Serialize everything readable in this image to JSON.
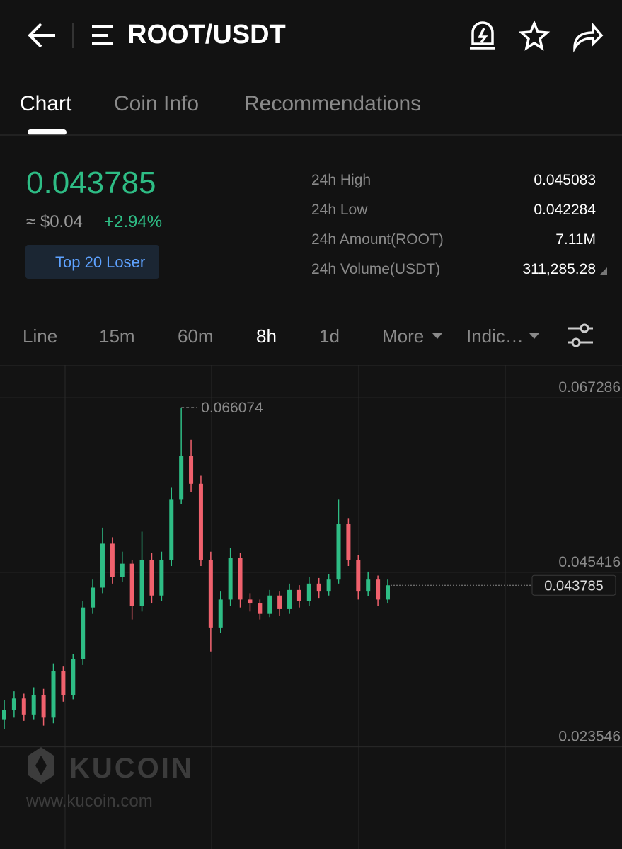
{
  "header": {
    "title": "ROOT/USDT"
  },
  "tabs": [
    "Chart",
    "Coin Info",
    "Recommendations"
  ],
  "ticker": {
    "price": "0.043785",
    "fiat": "≈ $0.04",
    "change": "+2.94%",
    "badge": "Top 20 Loser",
    "stats": [
      {
        "label": "24h High",
        "value": "0.045083"
      },
      {
        "label": "24h Low",
        "value": "0.042284"
      },
      {
        "label": "24h Amount(ROOT)",
        "value": "7.11M"
      },
      {
        "label": "24h Volume(USDT)",
        "value": "311,285.28"
      }
    ]
  },
  "intervals": [
    "Line",
    "15m",
    "60m",
    "8h",
    "1d",
    "More",
    "Indic…"
  ],
  "watermark": {
    "brand": "KUCOIN",
    "url": "www.kucoin.com"
  },
  "chart": {
    "type": "candlestick",
    "up_color": "#2ebd85",
    "down_color": "#f0616d",
    "ylim": [
      0.010744,
      0.071376
    ],
    "yticks": [
      0.067286,
      0.045416,
      0.023546
    ],
    "open": [
      0.027,
      0.0282,
      0.0296,
      0.0276,
      0.03,
      0.0272,
      0.033,
      0.03,
      0.0345,
      0.041,
      0.0435,
      0.049,
      0.0448,
      0.0465,
      0.0412,
      0.047,
      0.0425,
      0.047,
      0.0545,
      0.06,
      0.0565,
      0.047,
      0.0385,
      0.042,
      0.0472,
      0.042,
      0.0415,
      0.0402,
      0.0425,
      0.0408,
      0.0432,
      0.0418,
      0.044,
      0.043,
      0.0445,
      0.0515,
      0.047,
      0.043,
      0.0445,
      0.042
    ],
    "high": [
      0.0294,
      0.0305,
      0.0302,
      0.031,
      0.0308,
      0.034,
      0.0336,
      0.0352,
      0.0418,
      0.0445,
      0.051,
      0.0498,
      0.048,
      0.047,
      0.0505,
      0.0478,
      0.048,
      0.056,
      0.066074,
      0.062,
      0.0575,
      0.048,
      0.043,
      0.0485,
      0.0478,
      0.0428,
      0.042,
      0.0432,
      0.043,
      0.044,
      0.0438,
      0.0448,
      0.0447,
      0.0452,
      0.0545,
      0.0522,
      0.0476,
      0.0455,
      0.045,
      0.0445
    ],
    "low": [
      0.0258,
      0.0272,
      0.0268,
      0.027,
      0.0262,
      0.0265,
      0.0292,
      0.0295,
      0.0338,
      0.0402,
      0.0428,
      0.044,
      0.0442,
      0.0395,
      0.0405,
      0.0415,
      0.0418,
      0.0462,
      0.054,
      0.0555,
      0.0462,
      0.0355,
      0.0378,
      0.0412,
      0.041,
      0.0405,
      0.0395,
      0.0398,
      0.04,
      0.0402,
      0.041,
      0.0412,
      0.0422,
      0.0425,
      0.044,
      0.0462,
      0.042,
      0.0424,
      0.0412,
      0.0415
    ],
    "close": [
      0.0282,
      0.0296,
      0.0276,
      0.03,
      0.0272,
      0.033,
      0.03,
      0.0345,
      0.041,
      0.0435,
      0.049,
      0.0448,
      0.0465,
      0.0412,
      0.047,
      0.0425,
      0.047,
      0.0545,
      0.06,
      0.0565,
      0.047,
      0.0385,
      0.042,
      0.0472,
      0.042,
      0.0415,
      0.0402,
      0.0425,
      0.0408,
      0.0432,
      0.0418,
      0.044,
      0.043,
      0.0445,
      0.0515,
      0.047,
      0.043,
      0.0445,
      0.042,
      0.043785
    ]
  }
}
